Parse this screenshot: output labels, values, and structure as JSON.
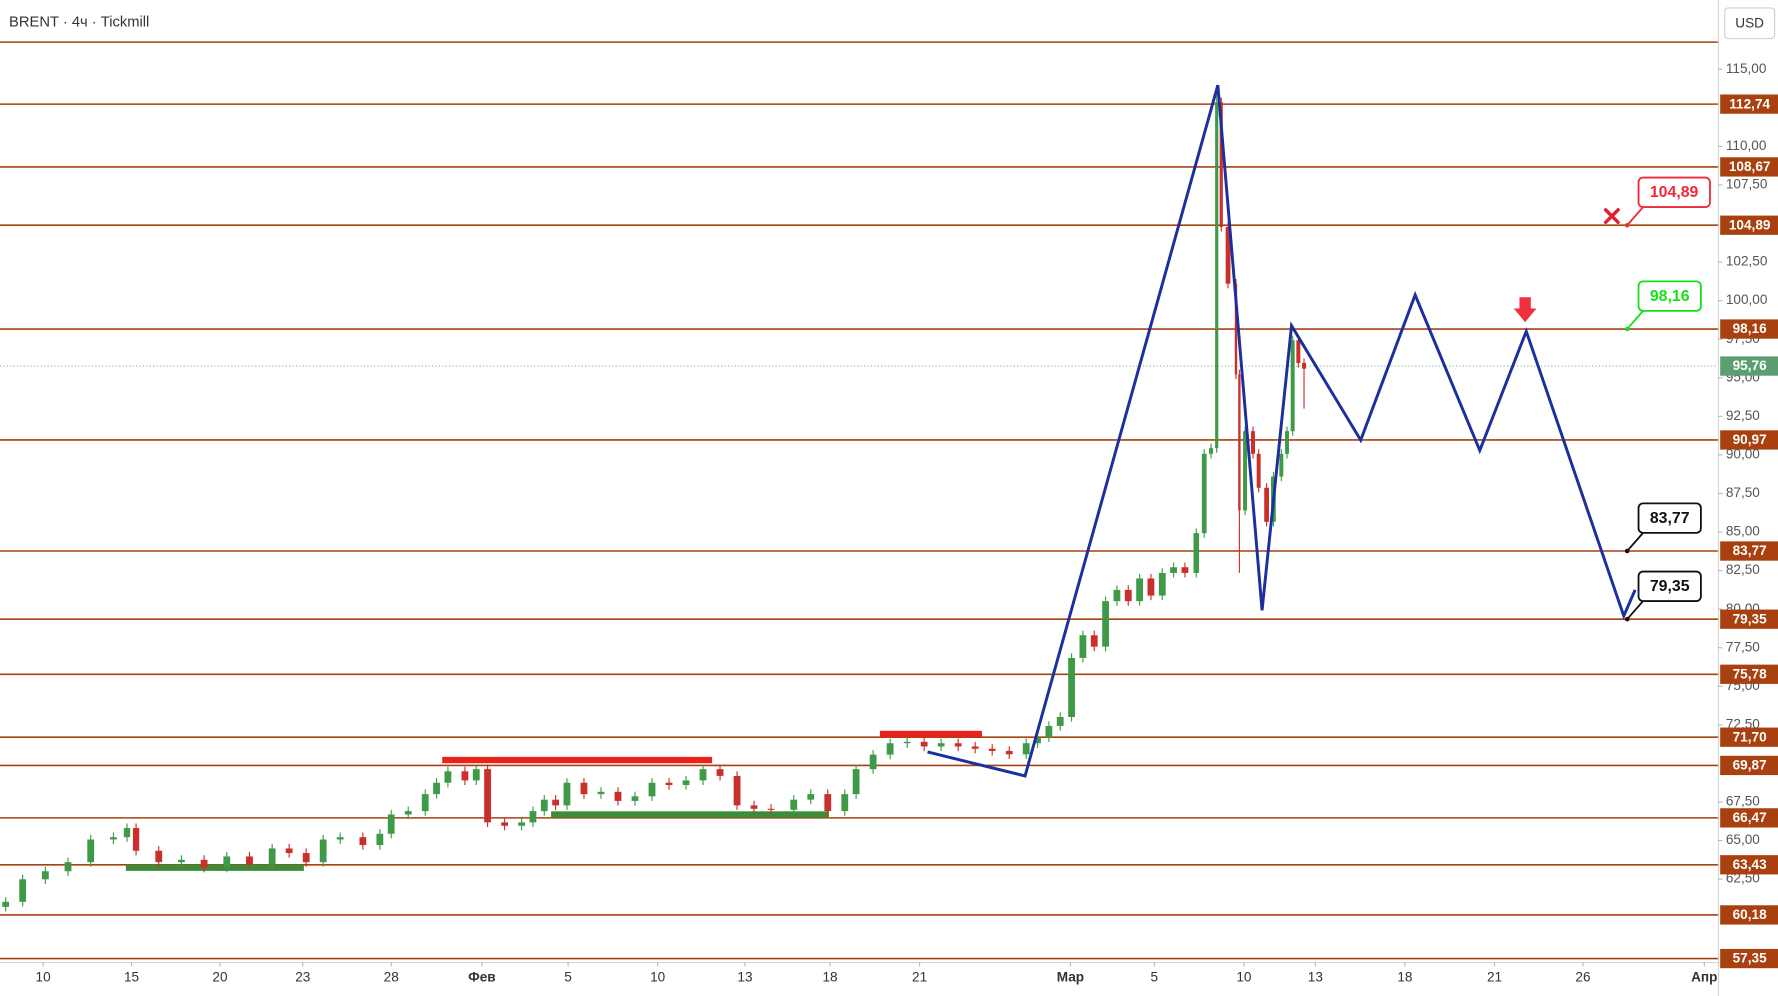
{
  "chart_data": {
    "type": "candlestick",
    "title": "BRENT · 4ч · Tickmill",
    "currency": "USD",
    "xlim": [
      0,
      151.5
    ],
    "ylim": [
      57.13,
      119.49
    ],
    "xticks": [
      {
        "value": 3.8,
        "label": "10"
      },
      {
        "value": 11.6,
        "label": "15"
      },
      {
        "value": 19.4,
        "label": "20"
      },
      {
        "value": 26.7,
        "label": "23"
      },
      {
        "value": 34.5,
        "label": "28"
      },
      {
        "value": 42.5,
        "label": "Фев"
      },
      {
        "value": 50.1,
        "label": "5"
      },
      {
        "value": 58,
        "label": "10"
      },
      {
        "value": 65.7,
        "label": "13"
      },
      {
        "value": 73.2,
        "label": "18"
      },
      {
        "value": 81.1,
        "label": "21"
      },
      {
        "value": 94.4,
        "label": "Мар"
      },
      {
        "value": 101.8,
        "label": "5"
      },
      {
        "value": 109.7,
        "label": "10"
      },
      {
        "value": 116,
        "label": "13"
      },
      {
        "value": 123.9,
        "label": "18"
      },
      {
        "value": 131.8,
        "label": "21"
      },
      {
        "value": 139.6,
        "label": "26"
      },
      {
        "value": 150.3,
        "label": "Апр"
      }
    ],
    "yticks": [
      {
        "value": 115,
        "label": "115,00"
      },
      {
        "value": 110,
        "label": "110,00"
      },
      {
        "value": 107.5,
        "label": "107,50"
      },
      {
        "value": 102.5,
        "label": "102,50"
      },
      {
        "value": 100,
        "label": "100,00"
      },
      {
        "value": 97.5,
        "label": "97,50"
      },
      {
        "value": 95,
        "label": "95,00"
      },
      {
        "value": 92.5,
        "label": "92,50"
      },
      {
        "value": 90,
        "label": "90,00"
      },
      {
        "value": 87.5,
        "label": "87,50"
      },
      {
        "value": 85,
        "label": "85,00"
      },
      {
        "value": 82.5,
        "label": "82,50"
      },
      {
        "value": 80,
        "label": "80,00"
      },
      {
        "value": 77.5,
        "label": "77,50"
      },
      {
        "value": 75,
        "label": "75,00"
      },
      {
        "value": 72.5,
        "label": "72,50"
      },
      {
        "value": 67.5,
        "label": "67,50"
      },
      {
        "value": 65,
        "label": "65,00"
      },
      {
        "value": 62.5,
        "label": "62,50"
      }
    ],
    "x": [
      0.5,
      2,
      4,
      6,
      8,
      10,
      11.2,
      12,
      14,
      16,
      18,
      20,
      22,
      24,
      25.5,
      27,
      28.5,
      30,
      32,
      33.5,
      34.5,
      36,
      37.5,
      38.5,
      39.5,
      41,
      42,
      43,
      44.5,
      46,
      47,
      48,
      49,
      50,
      51.5,
      53,
      54.5,
      56,
      57.5,
      59,
      60.5,
      62,
      63.5,
      65,
      66.5,
      68,
      70,
      71.5,
      73,
      74.5,
      75.5,
      77,
      78.5,
      80,
      81.5,
      83,
      84.5,
      86,
      87.5,
      89,
      90.5,
      91.5,
      92.5,
      93.5,
      94.5,
      95.5,
      96.5,
      97.5,
      98.5,
      99.5,
      100.5,
      101.5,
      102.5,
      103.5,
      104.5,
      105.5,
      106.2,
      106.8,
      107.3,
      107.7,
      108.3,
      109,
      109.3,
      109.8,
      110.5,
      111,
      111.7,
      112.3,
      113,
      113.5,
      114,
      114.5,
      115
    ],
    "open": [
      60.7,
      61.03,
      62.49,
      63.01,
      63.6,
      65.07,
      65.22,
      65.81,
      64.34,
      63.6,
      63.75,
      63.24,
      63.97,
      63.46,
      64.49,
      64.19,
      63.6,
      65.07,
      65.22,
      64.71,
      65.44,
      66.69,
      66.91,
      68.01,
      68.75,
      69.49,
      68.9,
      69.63,
      66.18,
      65.96,
      66.18,
      66.91,
      67.65,
      67.28,
      68.75,
      68.01,
      68.16,
      67.57,
      67.87,
      68.75,
      68.6,
      68.9,
      69.63,
      69.19,
      67.28,
      67.06,
      66.99,
      67.65,
      68.01,
      66.91,
      68.01,
      69.63,
      70.57,
      71.31,
      71.4,
      71.1,
      71.31,
      71.1,
      70.95,
      70.81,
      70.59,
      71.31,
      71.69,
      72.43,
      73.01,
      76.84,
      78.31,
      77.57,
      80.52,
      81.25,
      80.52,
      81.99,
      80.88,
      82.35,
      82.72,
      82.35,
      84.93,
      90.07,
      90.44,
      112.87,
      104.78,
      101.1,
      95.22,
      86.4,
      91.54,
      90.07,
      87.87,
      85.66,
      88.6,
      90.07,
      91.54,
      97.43,
      95.96
    ],
    "high": [
      61.33,
      62.79,
      63.31,
      63.9,
      65.37,
      65.52,
      66.11,
      66.11,
      64.64,
      64.05,
      64.05,
      64.27,
      64.27,
      64.79,
      64.79,
      64.49,
      65.37,
      65.52,
      65.52,
      65.74,
      66.99,
      67.21,
      68.31,
      69.05,
      69.79,
      69.79,
      69.93,
      69.93,
      66.48,
      66.48,
      67.21,
      67.95,
      67.95,
      69.05,
      69.05,
      68.46,
      68.46,
      68.17,
      69.05,
      69.05,
      69.2,
      69.93,
      69.93,
      69.49,
      67.58,
      67.36,
      67.95,
      68.31,
      68.31,
      68.31,
      69.93,
      70.87,
      71.61,
      71.7,
      71.7,
      71.61,
      71.61,
      71.4,
      71.25,
      71.11,
      71.61,
      71.99,
      72.73,
      73.31,
      77.14,
      78.61,
      78.61,
      80.82,
      81.55,
      81.55,
      82.29,
      82.29,
      82.65,
      83.02,
      83.02,
      85.23,
      90.37,
      90.74,
      113.97,
      113.17,
      105.08,
      101.4,
      95.52,
      91.84,
      91.84,
      90.37,
      88.17,
      88.9,
      90.37,
      91.84,
      97.73,
      97.73,
      96.26
    ],
    "low": [
      60.4,
      60.73,
      62.19,
      62.71,
      63.3,
      64.77,
      64.92,
      64.04,
      63.3,
      63.3,
      62.94,
      62.94,
      63.16,
      63.16,
      63.89,
      63.3,
      63.3,
      64.77,
      64.41,
      64.41,
      65.14,
      66.39,
      66.61,
      67.71,
      68.45,
      68.6,
      68.6,
      65.88,
      65.66,
      65.66,
      65.88,
      66.61,
      66.98,
      66.98,
      67.71,
      67.71,
      67.27,
      67.27,
      67.57,
      68.3,
      68.3,
      68.6,
      68.89,
      66.98,
      66.76,
      66.69,
      66.69,
      67.35,
      66.61,
      66.61,
      67.71,
      69.33,
      70.27,
      71.01,
      70.8,
      70.8,
      70.8,
      70.65,
      70.51,
      70.29,
      70.29,
      71.01,
      71.39,
      72.13,
      72.71,
      76.54,
      77.27,
      77.27,
      80.22,
      80.22,
      80.22,
      80.58,
      80.58,
      82.05,
      82.05,
      82.05,
      84.63,
      89.77,
      90.14,
      104.48,
      100.8,
      94.92,
      82.35,
      86.1,
      89.77,
      87.57,
      85.36,
      85.36,
      88.3,
      89.77,
      91.24,
      95.66,
      93.0
    ],
    "close": [
      61.03,
      62.49,
      63.01,
      63.6,
      65.07,
      65.22,
      65.81,
      64.34,
      63.6,
      63.75,
      63.24,
      63.97,
      63.46,
      64.49,
      64.19,
      63.6,
      65.07,
      65.22,
      64.71,
      65.44,
      66.69,
      66.91,
      68.01,
      68.75,
      69.49,
      68.9,
      69.63,
      66.18,
      65.96,
      66.18,
      66.91,
      67.65,
      67.28,
      68.75,
      68.01,
      68.16,
      67.57,
      67.87,
      68.75,
      68.6,
      68.9,
      69.63,
      69.19,
      67.28,
      67.06,
      66.99,
      67.65,
      68.01,
      66.91,
      68.01,
      69.63,
      70.57,
      71.31,
      71.4,
      71.1,
      71.31,
      71.1,
      70.95,
      70.81,
      70.59,
      71.31,
      71.69,
      72.43,
      73.01,
      76.84,
      78.31,
      77.57,
      80.52,
      81.25,
      80.52,
      81.99,
      80.88,
      82.35,
      82.72,
      82.35,
      84.93,
      90.07,
      90.44,
      112.87,
      104.78,
      101.1,
      95.22,
      86.4,
      91.54,
      90.07,
      87.87,
      85.66,
      88.6,
      90.07,
      91.54,
      97.43,
      95.96,
      95.59
    ],
    "up_color": "#3f9a48",
    "down_color": "#c9302c",
    "level_color": "#a9400f",
    "levels": [
      {
        "value": 116.76
      },
      {
        "value": 112.74,
        "label": "112,74"
      },
      {
        "value": 108.67,
        "label": "108,67"
      },
      {
        "value": 104.89,
        "label": "104,89"
      },
      {
        "value": 98.16,
        "label": "98,16"
      },
      {
        "value": 90.97,
        "label": "90,97"
      },
      {
        "value": 83.77,
        "label": "83,77"
      },
      {
        "value": 79.35,
        "label": "79,35"
      },
      {
        "value": 75.78,
        "label": "75,78"
      },
      {
        "value": 71.7,
        "label": "71,70"
      },
      {
        "value": 69.87,
        "label": "69,87"
      },
      {
        "value": 66.47,
        "label": "66,47"
      },
      {
        "value": 63.43,
        "label": "63,43"
      },
      {
        "value": 60.18,
        "label": "60,18"
      },
      {
        "value": 57.35,
        "label": "57,35"
      }
    ],
    "current_price": {
      "value": 95.76,
      "label": "95,76",
      "color": "#5c9e72"
    },
    "zones": [
      {
        "x": [
          39,
          62.8
        ],
        "value": 70.22,
        "color": "#e8231b"
      },
      {
        "x": [
          77.6,
          86.6
        ],
        "value": 71.91,
        "color": "#e8231b"
      },
      {
        "x": [
          11.1,
          26.8
        ],
        "value": 63.24,
        "color": "#3d8c3a"
      },
      {
        "x": [
          48.6,
          73.1
        ],
        "value": 66.69,
        "color": "#3d8c3a"
      }
    ],
    "projection": {
      "color": "#1c2f9c",
      "x": [
        81.8,
        90.4,
        107.4,
        111.3,
        113.9,
        120.0,
        124.8,
        130.5,
        134.6,
        143.2,
        144.2
      ],
      "y": [
        70.74,
        69.19,
        113.97,
        79.93,
        98.38,
        90.96,
        100.37,
        90.29,
        98.01,
        79.56,
        81.25
      ]
    },
    "callouts": [
      {
        "x": 143.5,
        "value": 104.89,
        "label": "104,89",
        "color": "#f0283c"
      },
      {
        "x": 143.5,
        "value": 98.16,
        "label": "98,16",
        "color": "#18e018"
      },
      {
        "x": 143.5,
        "value": 83.77,
        "label": "83,77",
        "color": "#111111"
      },
      {
        "x": 143.5,
        "value": 79.35,
        "label": "79,35",
        "color": "#111111"
      }
    ]
  }
}
